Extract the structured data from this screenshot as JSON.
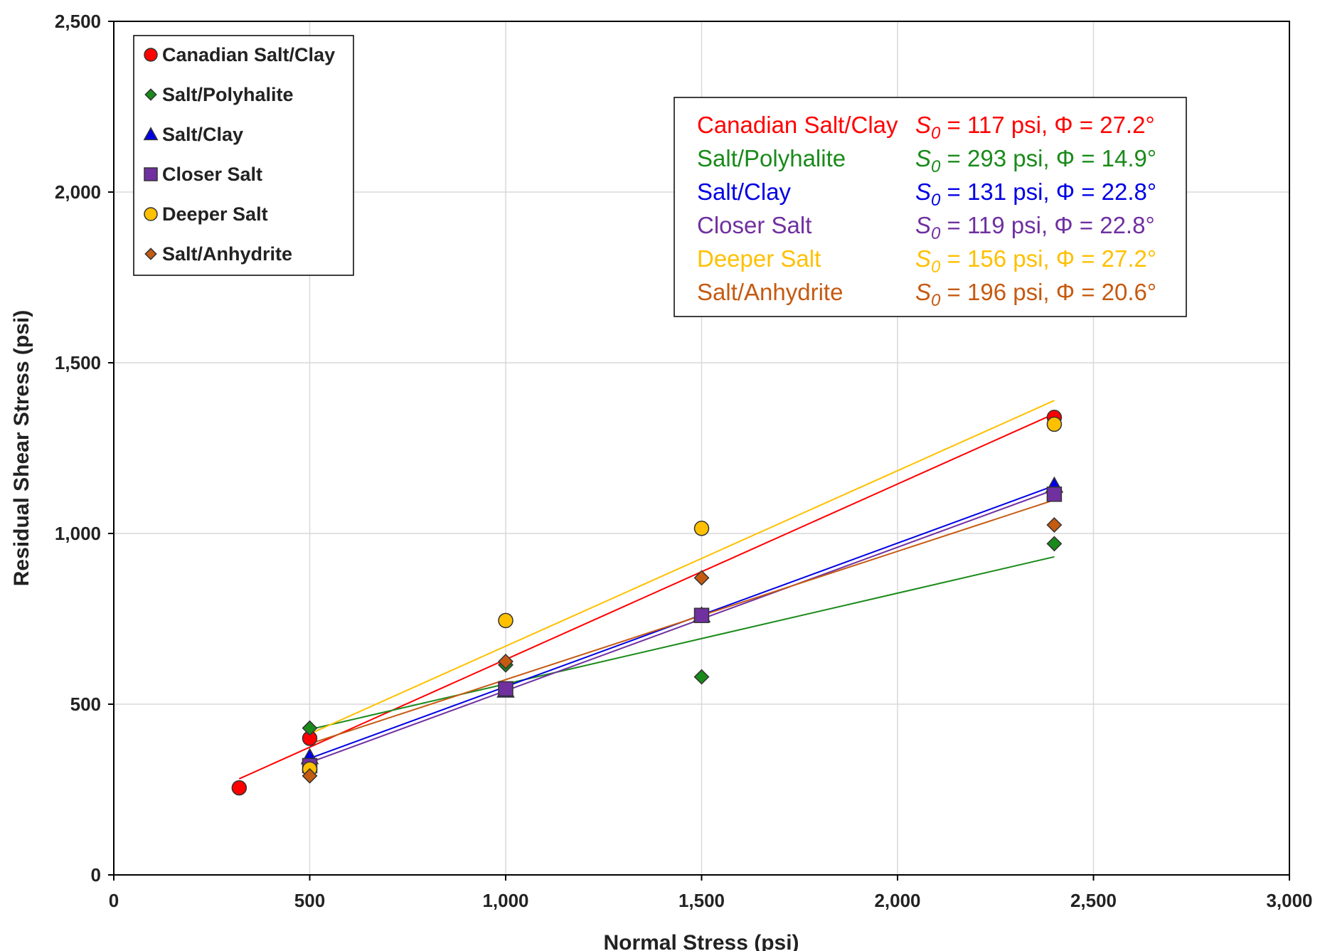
{
  "chart_data": {
    "type": "scatter",
    "xlabel": "Normal Stress (psi)",
    "ylabel": "Residual Shear Stress (psi)",
    "xlim": [
      0,
      3000
    ],
    "ylim": [
      0,
      2500
    ],
    "x_ticks": [
      "0",
      "500",
      "1,000",
      "1,500",
      "2,000",
      "2,500",
      "3,000"
    ],
    "y_ticks": [
      "0",
      "500",
      "1,000",
      "1,500",
      "2,000",
      "2,500"
    ],
    "x_tick_values": [
      0,
      500,
      1000,
      1500,
      2000,
      2500,
      3000
    ],
    "y_tick_values": [
      0,
      500,
      1000,
      1500,
      2000,
      2500
    ],
    "grid": true,
    "legend_position": "top-left",
    "series": [
      {
        "name": "Canadian Salt/Clay",
        "color": "#ff0000",
        "marker": "circle",
        "points": [
          [
            320,
            255
          ],
          [
            500,
            400
          ],
          [
            2400,
            1340
          ]
        ],
        "fit": {
          "S0": 117,
          "phi": 27.2,
          "x_range": [
            320,
            2400
          ]
        },
        "fit_label": "Canadian Salt/Clay",
        "fit_eq": {
          "s": "S",
          "sub": "0",
          "rest": " = 117 psi, Φ = 27.2°"
        }
      },
      {
        "name": "Salt/Polyhalite",
        "color": "#1a8a1a",
        "marker": "diamond",
        "points": [
          [
            500,
            430
          ],
          [
            1000,
            615
          ],
          [
            1500,
            580
          ],
          [
            2400,
            970
          ]
        ],
        "fit": {
          "S0": 293,
          "phi": 14.9,
          "x_range": [
            500,
            2400
          ]
        },
        "fit_label": "Salt/Polyhalite",
        "fit_eq": {
          "s": "S",
          "sub": "0",
          "rest": " = 293 psi, Φ = 14.9°"
        }
      },
      {
        "name": "Salt/Clay",
        "color": "#0000e6",
        "marker": "triangle",
        "points": [
          [
            500,
            345
          ],
          [
            1000,
            540
          ],
          [
            1500,
            760
          ],
          [
            2400,
            1140
          ]
        ],
        "fit": {
          "S0": 131,
          "phi": 22.8,
          "x_range": [
            500,
            2400
          ]
        },
        "fit_label": "Salt/Clay",
        "fit_eq": {
          "s": "S",
          "sub": "0",
          "rest": " = 131 psi, Φ = 22.8°"
        }
      },
      {
        "name": "Closer Salt",
        "color": "#7030a0",
        "marker": "square",
        "points": [
          [
            500,
            320
          ],
          [
            1000,
            545
          ],
          [
            1500,
            760
          ],
          [
            2400,
            1115
          ]
        ],
        "fit": {
          "S0": 119,
          "phi": 22.8,
          "x_range": [
            500,
            2400
          ]
        },
        "fit_label": "Closer Salt",
        "fit_eq": {
          "s": "S",
          "sub": "0",
          "rest": " = 119 psi, Φ = 22.8°"
        }
      },
      {
        "name": "Deeper Salt",
        "color": "#ffc000",
        "marker": "circle",
        "points": [
          [
            500,
            310
          ],
          [
            1000,
            745
          ],
          [
            1500,
            1015
          ],
          [
            2400,
            1320
          ]
        ],
        "fit": {
          "S0": 156,
          "phi": 27.2,
          "x_range": [
            500,
            2400
          ]
        },
        "fit_label": "Deeper Salt",
        "fit_eq": {
          "s": "S",
          "sub": "0",
          "rest": " = 156 psi, Φ = 27.2°"
        }
      },
      {
        "name": "Salt/Anhydrite",
        "color": "#c55a11",
        "marker": "diamond",
        "points": [
          [
            500,
            290
          ],
          [
            1000,
            625
          ],
          [
            1500,
            870
          ],
          [
            2400,
            1025
          ]
        ],
        "fit": {
          "S0": 196,
          "phi": 20.6,
          "x_range": [
            500,
            2400
          ]
        },
        "fit_label": "Salt/Anhydrite",
        "fit_eq": {
          "s": "S",
          "sub": "0",
          "rest": " = 196 psi, Φ = 20.6°"
        }
      }
    ]
  }
}
